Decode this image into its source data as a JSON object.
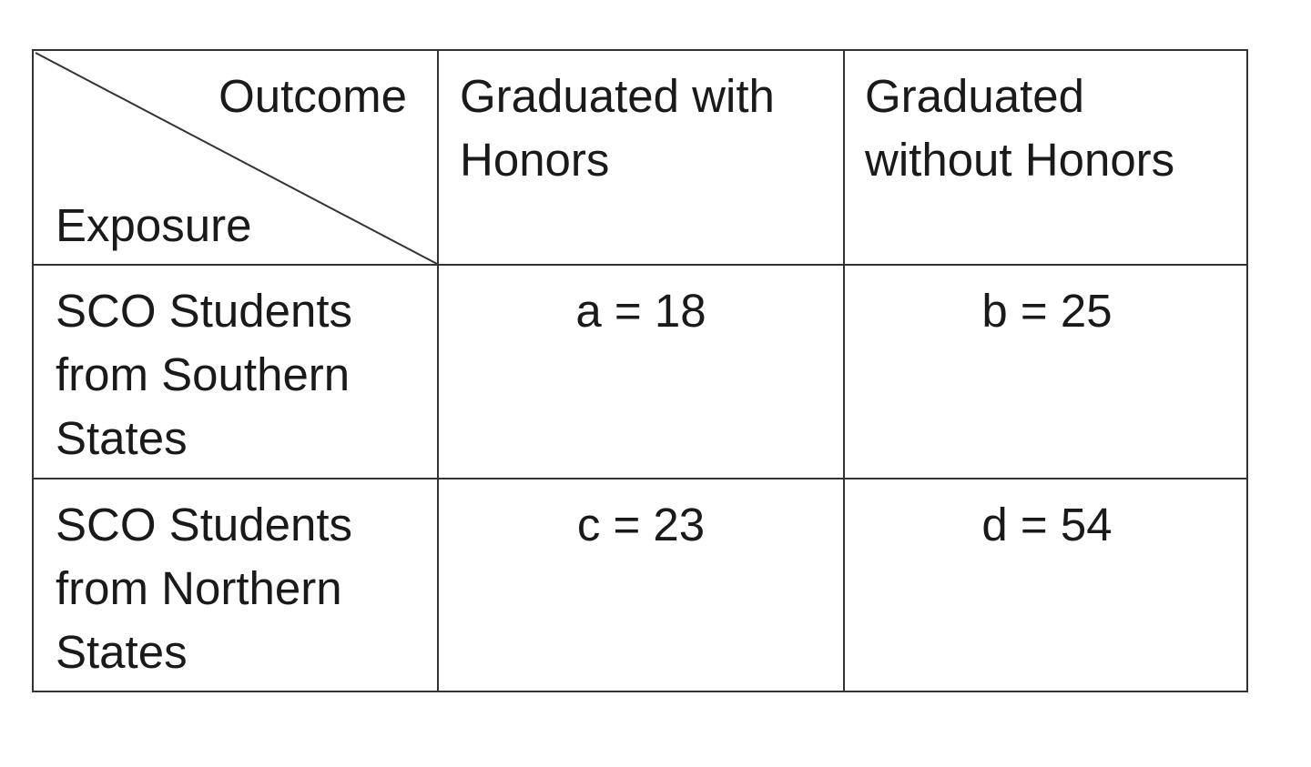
{
  "header": {
    "corner_top": "Outcome",
    "corner_bottom": "Exposure",
    "columns": [
      "Graduated with Honors",
      "Graduated without Honors"
    ]
  },
  "rows": [
    {
      "label": "SCO Students from Southern States",
      "cells": [
        "a = 18",
        "b = 25"
      ]
    },
    {
      "label": "SCO Students from Northern States",
      "cells": [
        "c = 23",
        "d = 54"
      ]
    }
  ]
}
